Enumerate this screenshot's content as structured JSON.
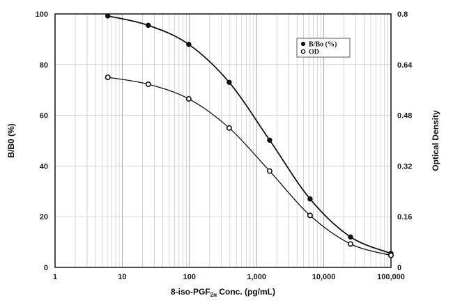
{
  "chart_data": {
    "type": "line",
    "title": "",
    "xlabel_main": "8-iso-PGF",
    "xlabel_sub": "2α",
    "xlabel_rest": " Conc. (pg/mL)",
    "ylabel": "B/B0 (%)",
    "y2label": "Optical Density",
    "x_scale": "log",
    "xlim": [
      1,
      100000
    ],
    "ylim": [
      0,
      100
    ],
    "y2lim": [
      0,
      0.8
    ],
    "x_ticks": [
      1,
      10,
      100,
      1000,
      10000,
      100000
    ],
    "x_tick_labels": [
      "1",
      "10",
      "100",
      "1,000",
      "10,000",
      "100,000"
    ],
    "y_ticks": [
      0,
      20,
      40,
      60,
      80,
      100
    ],
    "y_tick_labels": [
      "0",
      "20",
      "40",
      "60",
      "80",
      "100"
    ],
    "y2_ticks": [
      0,
      0.16,
      0.32,
      0.48,
      0.64,
      0.8
    ],
    "y2_tick_labels": [
      "0",
      "0.16",
      "0.32",
      "0.48",
      "0.64",
      "0.8"
    ],
    "grid": true,
    "legend_position": "top-right",
    "series": [
      {
        "name": "B/Bo (%)",
        "axis": "left",
        "marker": "filled-circle",
        "color": "#111111",
        "x": [
          6.1,
          24.4,
          97.7,
          391,
          1563,
          6250,
          25000,
          100000
        ],
        "y": [
          99.2,
          95.5,
          88.0,
          73.0,
          50.2,
          27.0,
          12.0,
          5.5
        ]
      },
      {
        "name": "OD",
        "axis": "right",
        "marker": "open-circle",
        "color": "#111111",
        "x": [
          6.1,
          24.4,
          97.7,
          391,
          1563,
          6250,
          25000,
          100000
        ],
        "y": [
          0.6,
          0.578,
          0.532,
          0.44,
          0.304,
          0.164,
          0.074,
          0.038
        ]
      }
    ]
  }
}
